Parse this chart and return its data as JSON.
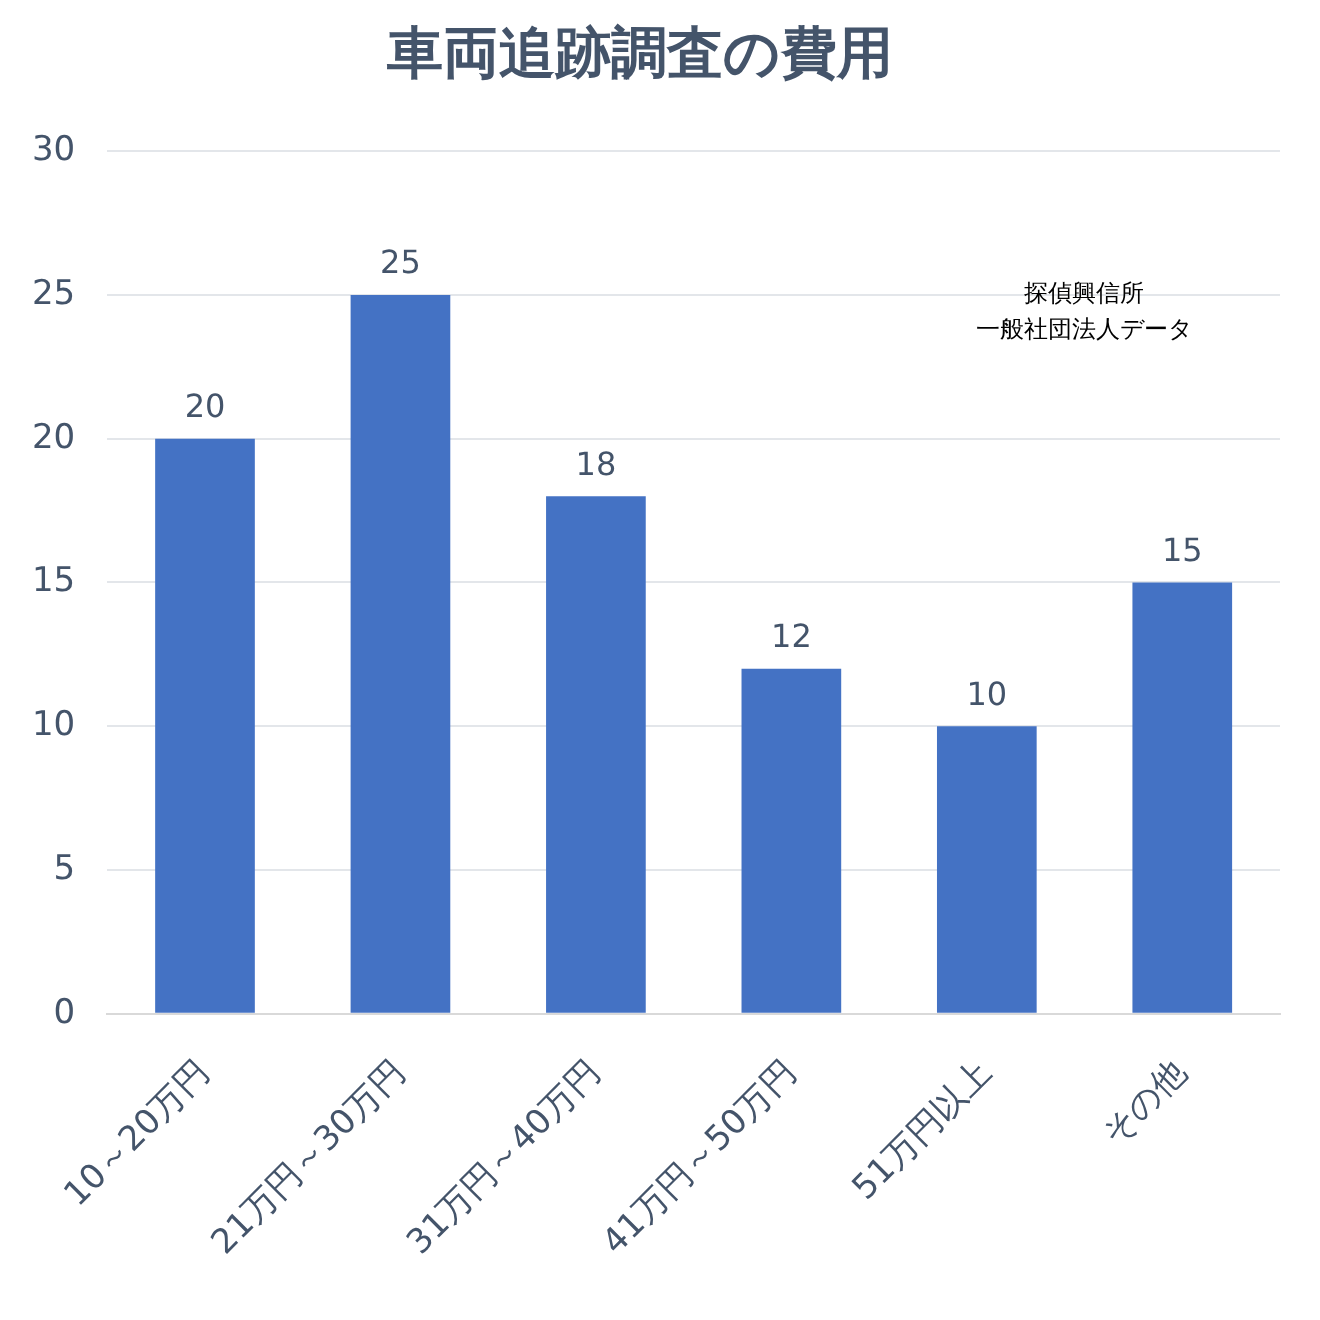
{
  "chart_data": {
    "type": "bar",
    "title": "車両追跡調査の費用",
    "categories": [
      "10～20万円",
      "21万円～30万円",
      "31万円～40万円",
      "41万円～50万円",
      "51万円以上",
      "その他"
    ],
    "values": [
      20,
      25,
      18,
      12,
      10,
      15
    ],
    "color": "#4472c4",
    "ylim": [
      0,
      30
    ],
    "yticks": [
      0,
      5,
      10,
      15,
      20,
      25,
      30
    ],
    "grid": "y",
    "data_labels": true,
    "annotations": [
      "探偵興信所一般社団法人データ"
    ]
  }
}
